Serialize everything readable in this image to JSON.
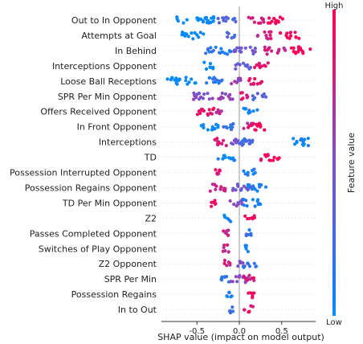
{
  "chart_data": {
    "type": "scatter",
    "subtype": "shap-beeswarm",
    "xlabel": "SHAP value (impact on model output)",
    "xlim": [
      -0.9,
      0.9
    ],
    "xticks": [
      "-0.5",
      "0.0",
      "0.5"
    ],
    "xtick_values": [
      -0.5,
      0,
      0.5
    ],
    "colorbar": {
      "label": "Feature value",
      "high": "High",
      "low": "Low",
      "low_color": "#008bfb",
      "high_color": "#ff0052"
    },
    "features": [
      {
        "name": "Out to In Opponent",
        "clusters": [
          [
            -0.75,
            -0.3,
            0.0
          ],
          [
            -0.25,
            -0.02,
            0.3
          ],
          [
            0.1,
            0.3,
            0.8
          ],
          [
            0.33,
            0.55,
            1.0
          ]
        ]
      },
      {
        "name": "Attempts at Goal",
        "clusters": [
          [
            -0.68,
            -0.42,
            0.0
          ],
          [
            -0.15,
            -0.04,
            0.3
          ],
          [
            0.2,
            0.38,
            0.8
          ],
          [
            0.48,
            0.72,
            0.95
          ]
        ]
      },
      {
        "name": "In Behind",
        "clusters": [
          [
            -0.4,
            -0.1,
            0.15
          ],
          [
            -0.08,
            0.2,
            0.45
          ],
          [
            0.3,
            0.55,
            0.75
          ],
          [
            0.6,
            0.85,
            1.0
          ]
        ]
      },
      {
        "name": "Interceptions Opponent",
        "clusters": [
          [
            -0.42,
            -0.3,
            0.05
          ],
          [
            -0.05,
            0.15,
            0.4
          ],
          [
            0.18,
            0.35,
            0.9
          ]
        ]
      },
      {
        "name": "Loose Ball Receptions",
        "clusters": [
          [
            -0.85,
            -0.5,
            0.0
          ],
          [
            -0.4,
            -0.15,
            0.2
          ],
          [
            -0.1,
            0.08,
            0.55
          ],
          [
            0.1,
            0.28,
            0.9
          ]
        ]
      },
      {
        "name": "SPR Per Min Opponent",
        "clusters": [
          [
            -0.55,
            -0.3,
            0.5
          ],
          [
            -0.25,
            -0.05,
            0.6
          ],
          [
            0.0,
            0.12,
            0.85
          ],
          [
            0.15,
            0.32,
            0.3
          ]
        ]
      },
      {
        "name": "Offers Received Opponent",
        "clusters": [
          [
            -0.55,
            -0.3,
            0.9
          ],
          [
            -0.28,
            -0.18,
            0.75
          ],
          [
            0.05,
            0.22,
            0.1
          ]
        ]
      },
      {
        "name": "In Front Opponent",
        "clusters": [
          [
            -0.45,
            -0.25,
            0.0
          ],
          [
            -0.2,
            -0.05,
            0.2
          ],
          [
            0.05,
            0.25,
            0.65
          ],
          [
            0.1,
            0.3,
            0.95
          ]
        ]
      },
      {
        "name": "Interceptions",
        "clusters": [
          [
            -0.3,
            -0.12,
            0.85
          ],
          [
            -0.1,
            0.02,
            0.45
          ],
          [
            0.0,
            0.28,
            0.25
          ],
          [
            0.55,
            0.82,
            0.05
          ]
        ]
      },
      {
        "name": "TD",
        "clusters": [
          [
            -0.25,
            -0.05,
            0.05
          ],
          [
            0.25,
            0.48,
            0.95
          ]
        ]
      },
      {
        "name": "Possession Interrupted Opponent",
        "clusters": [
          [
            -0.32,
            -0.2,
            0.9
          ],
          [
            0.05,
            0.2,
            0.1
          ]
        ]
      },
      {
        "name": "Possession Regains Opponent",
        "clusters": [
          [
            -0.35,
            -0.15,
            0.75
          ],
          [
            -0.1,
            0.15,
            0.45
          ],
          [
            0.1,
            0.32,
            0.1
          ]
        ]
      },
      {
        "name": "TD Per Min Opponent",
        "clusters": [
          [
            -0.35,
            -0.22,
            0.9
          ],
          [
            -0.12,
            0.05,
            0.5
          ],
          [
            0.05,
            0.25,
            0.1
          ]
        ]
      },
      {
        "name": "Z2",
        "clusters": [
          [
            -0.18,
            -0.1,
            0.1
          ],
          [
            0.05,
            0.18,
            0.9
          ]
        ]
      },
      {
        "name": "Passes Completed Opponent",
        "clusters": [
          [
            -0.2,
            -0.12,
            0.75
          ],
          [
            0.03,
            0.15,
            0.2
          ]
        ]
      },
      {
        "name": "Switches of Play Opponent",
        "clusters": [
          [
            -0.2,
            -0.12,
            0.8
          ],
          [
            0.07,
            0.12,
            0.1
          ]
        ]
      },
      {
        "name": "Z2 Opponent",
        "clusters": [
          [
            -0.2,
            -0.08,
            0.8
          ],
          [
            -0.05,
            0.08,
            0.5
          ],
          [
            0.05,
            0.2,
            0.15
          ]
        ]
      },
      {
        "name": "SPR Per Min",
        "clusters": [
          [
            -0.25,
            -0.1,
            0.15
          ],
          [
            -0.1,
            0.1,
            0.5
          ],
          [
            0.05,
            0.22,
            0.85
          ]
        ]
      },
      {
        "name": "Possession Regains",
        "clusters": [
          [
            -0.15,
            -0.08,
            0.1
          ],
          [
            0.08,
            0.18,
            0.9
          ]
        ]
      },
      {
        "name": "In to Out",
        "clusters": [
          [
            -0.15,
            -0.05,
            0.2
          ],
          [
            0.05,
            0.18,
            0.9
          ]
        ]
      }
    ]
  }
}
